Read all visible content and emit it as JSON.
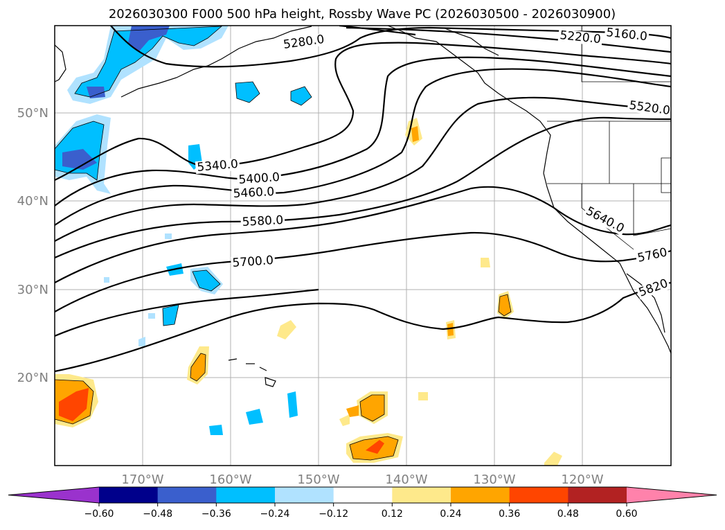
{
  "title": "2026030300 F000 500 hPa height, Rossby Wave PC (2026030500 - 2026030900)",
  "axes": {
    "lon_labels": [
      "170°W",
      "160°W",
      "150°W",
      "140°W",
      "130°W",
      "120°W"
    ],
    "lat_labels": [
      "50°N",
      "40°N",
      "30°N",
      "20°N"
    ]
  },
  "contour_labels": [
    "5160.0",
    "5220.0",
    "5280.0",
    "5340.0",
    "5400.0",
    "5460.0",
    "5520.0",
    "5580.0",
    "5640.0",
    "5700.0",
    "5760",
    "5820"
  ],
  "colorbar": {
    "ticks": [
      "−0.60",
      "−0.48",
      "−0.36",
      "−0.24",
      "−0.12",
      "0.12",
      "0.24",
      "0.36",
      "0.48",
      "0.60"
    ],
    "colors": [
      "#9a32cd",
      "#00008b",
      "#3a5fcd",
      "#00bfff",
      "#b0e2ff",
      "#ffffff",
      "#fee98b",
      "#ffa500",
      "#ff4500",
      "#b22222",
      "#ff82ab"
    ]
  }
}
